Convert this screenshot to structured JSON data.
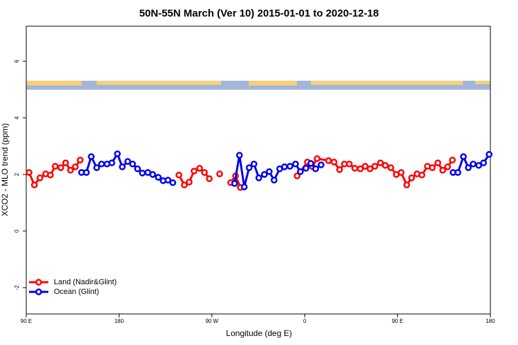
{
  "chart_data": {
    "type": "line",
    "title": "50N-55N March (Ver 10)   2015-01-01 to 2020-12-18",
    "x_label": "Longitude (deg E)",
    "y_label": "XCO2 - MLO trend (ppm)",
    "xlim": [
      90,
      540
    ],
    "xticks": [
      {
        "value": 90,
        "label": "90 E"
      },
      {
        "value": 180,
        "label": "180"
      },
      {
        "value": 270,
        "label": "90 W"
      },
      {
        "value": 360,
        "label": "0"
      },
      {
        "value": 450,
        "label": "90 E"
      },
      {
        "value": 540,
        "label": "180"
      }
    ],
    "ylim": [
      -2.93,
      7.24
    ],
    "yticks": [
      -2,
      0,
      2,
      4,
      6
    ],
    "legend": "bottom-left",
    "series": [
      {
        "name": "Land (Nadir&Glint)",
        "color": "#ff0000",
        "x": [
          92.7,
          97.9,
          103.3,
          108.8,
          113.4,
          118.1,
          123.5,
          128.2,
          132.9,
          137.6,
          142.3,
          null,
          238.0,
          243.3,
          248.0,
          252.7,
          258.1,
          262.8,
          267.5,
          null,
          277.5,
          null,
          288.2,
          292.9,
          297.6,
          null,
          352.6,
          362.6,
          367.3,
          372.0,
          383.1,
          388.4,
          393.8,
          398.5,
          403.2,
          408.5,
          413.9,
          418.6,
          423.3,
          428.0,
          433.4,
          438.1,
          443.5,
          448.8,
          453.5,
          458.9,
          463.6,
          468.9,
          473.6,
          479.0,
          483.7,
          489.1,
          493.8,
          498.5,
          503.2
        ],
        "values": [
          2.07,
          1.63,
          1.88,
          2.02,
          1.98,
          2.29,
          2.24,
          2.41,
          2.15,
          2.27,
          2.51,
          null,
          1.98,
          1.63,
          1.73,
          2.12,
          2.22,
          2.07,
          1.85,
          null,
          2.02,
          null,
          1.71,
          1.95,
          1.54,
          null,
          1.95,
          2.44,
          2.28,
          2.56,
          2.49,
          2.44,
          2.17,
          2.37,
          2.37,
          2.22,
          2.2,
          2.29,
          2.2,
          2.29,
          2.41,
          2.32,
          2.24,
          2.0,
          2.07,
          1.63,
          1.88,
          2.02,
          1.98,
          2.29,
          2.24,
          2.41,
          2.15,
          2.27,
          2.51
        ]
      },
      {
        "name": "Ocean (Glint)",
        "color": "#0000ee",
        "x": [
          143.6,
          148.3,
          153.0,
          158.3,
          163.0,
          168.3,
          173.0,
          178.4,
          183.1,
          188.4,
          193.1,
          197.9,
          202.6,
          207.9,
          212.6,
          218.0,
          222.7,
          227.4,
          232.1,
          null,
          292.0,
          296.7,
          301.4,
          306.1,
          310.8,
          315.5,
          320.9,
          325.6,
          330.3,
          335.7,
          340.4,
          345.7,
          351.1,
          355.8,
          361.2,
          365.9,
          370.6,
          375.9,
          null,
          503.8,
          508.5,
          513.9,
          518.6,
          523.3,
          528.7,
          533.4,
          538.8
        ],
        "values": [
          2.07,
          2.07,
          2.63,
          2.24,
          2.37,
          2.37,
          2.41,
          2.73,
          2.27,
          2.46,
          2.37,
          2.2,
          2.05,
          2.07,
          2.0,
          1.9,
          1.78,
          1.8,
          1.71,
          null,
          1.68,
          2.68,
          1.56,
          2.24,
          2.37,
          1.88,
          2.0,
          2.1,
          1.8,
          2.2,
          2.27,
          2.29,
          2.37,
          2.1,
          2.22,
          2.39,
          2.2,
          2.34,
          null,
          2.07,
          2.07,
          2.63,
          2.24,
          2.37,
          2.32,
          2.41,
          2.71
        ]
      }
    ]
  }
}
